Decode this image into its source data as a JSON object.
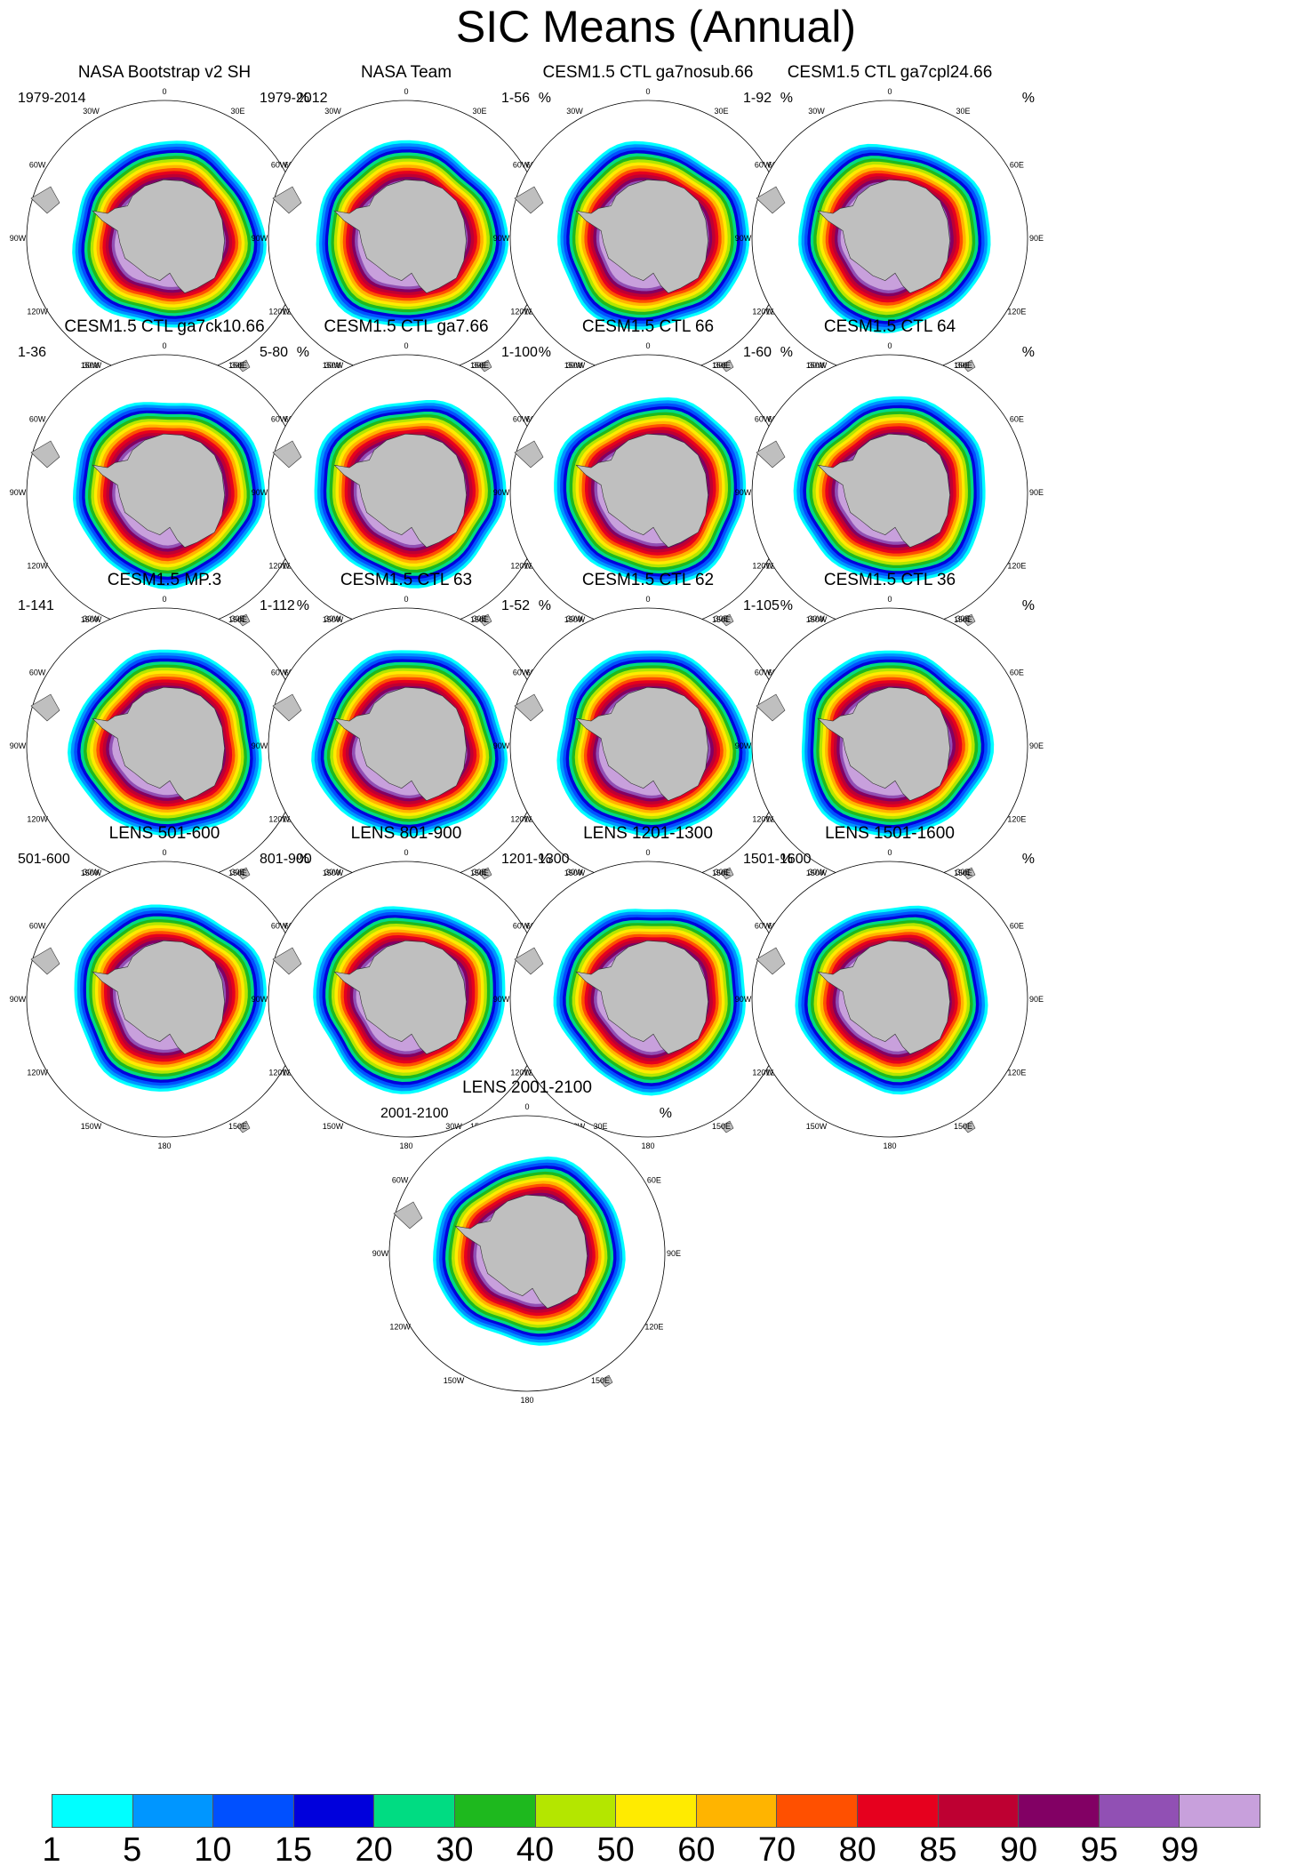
{
  "title": "SIC Means (Annual)",
  "unit": "%",
  "lon_labels": [
    "0",
    "30E",
    "60E",
    "90E",
    "120E",
    "150E",
    "180",
    "150W",
    "120W",
    "90W",
    "60W",
    "30W"
  ],
  "colors": {
    "land": "#bfbfbf",
    "ocean": "#ffffff",
    "grid": "#000000"
  },
  "chart_data": {
    "type": "heatmap",
    "projection": "south polar stereographic",
    "variable": "sea ice concentration",
    "colorbar": {
      "levels": [
        1,
        5,
        10,
        15,
        20,
        30,
        40,
        50,
        60,
        70,
        80,
        85,
        90,
        95,
        99
      ],
      "colors": [
        "#00ffff",
        "#0096ff",
        "#0050ff",
        "#0000dc",
        "#00dc82",
        "#1eb91e",
        "#b4e600",
        "#ffeb00",
        "#ffb400",
        "#ff5000",
        "#e6001e",
        "#be0032",
        "#820064",
        "#9150b4",
        "#c8a0dc"
      ]
    },
    "panels": [
      {
        "title": "NASA Bootstrap v2 SH",
        "period": "1979-2014"
      },
      {
        "title": "NASA Team",
        "period": "1979-2012"
      },
      {
        "title": "CESM1.5 CTL ga7nosub.66",
        "period": "1-56"
      },
      {
        "title": "CESM1.5 CTL ga7cpl24.66",
        "period": "1-92"
      },
      {
        "title": "CESM1.5 CTL ga7ck10.66",
        "period": "1-36"
      },
      {
        "title": "CESM1.5 CTL ga7.66",
        "period": "5-80"
      },
      {
        "title": "CESM1.5 CTL 66",
        "period": "1-100"
      },
      {
        "title": "CESM1.5 CTL 64",
        "period": "1-60"
      },
      {
        "title": "CESM1.5 MP.3",
        "period": "1-141"
      },
      {
        "title": "CESM1.5 CTL 63",
        "period": "1-112"
      },
      {
        "title": "CESM1.5 CTL 62",
        "period": "1-52"
      },
      {
        "title": "CESM1.5 CTL 36",
        "period": "1-105"
      },
      {
        "title": "LENS 501-600",
        "period": "501-600"
      },
      {
        "title": "LENS 801-900",
        "period": "801-900"
      },
      {
        "title": "LENS 1201-1300",
        "period": "1201-1300"
      },
      {
        "title": "LENS 1501-1600",
        "period": "1501-1600"
      },
      {
        "title": "LENS 2001-2100",
        "period": "2001-2100"
      }
    ]
  }
}
